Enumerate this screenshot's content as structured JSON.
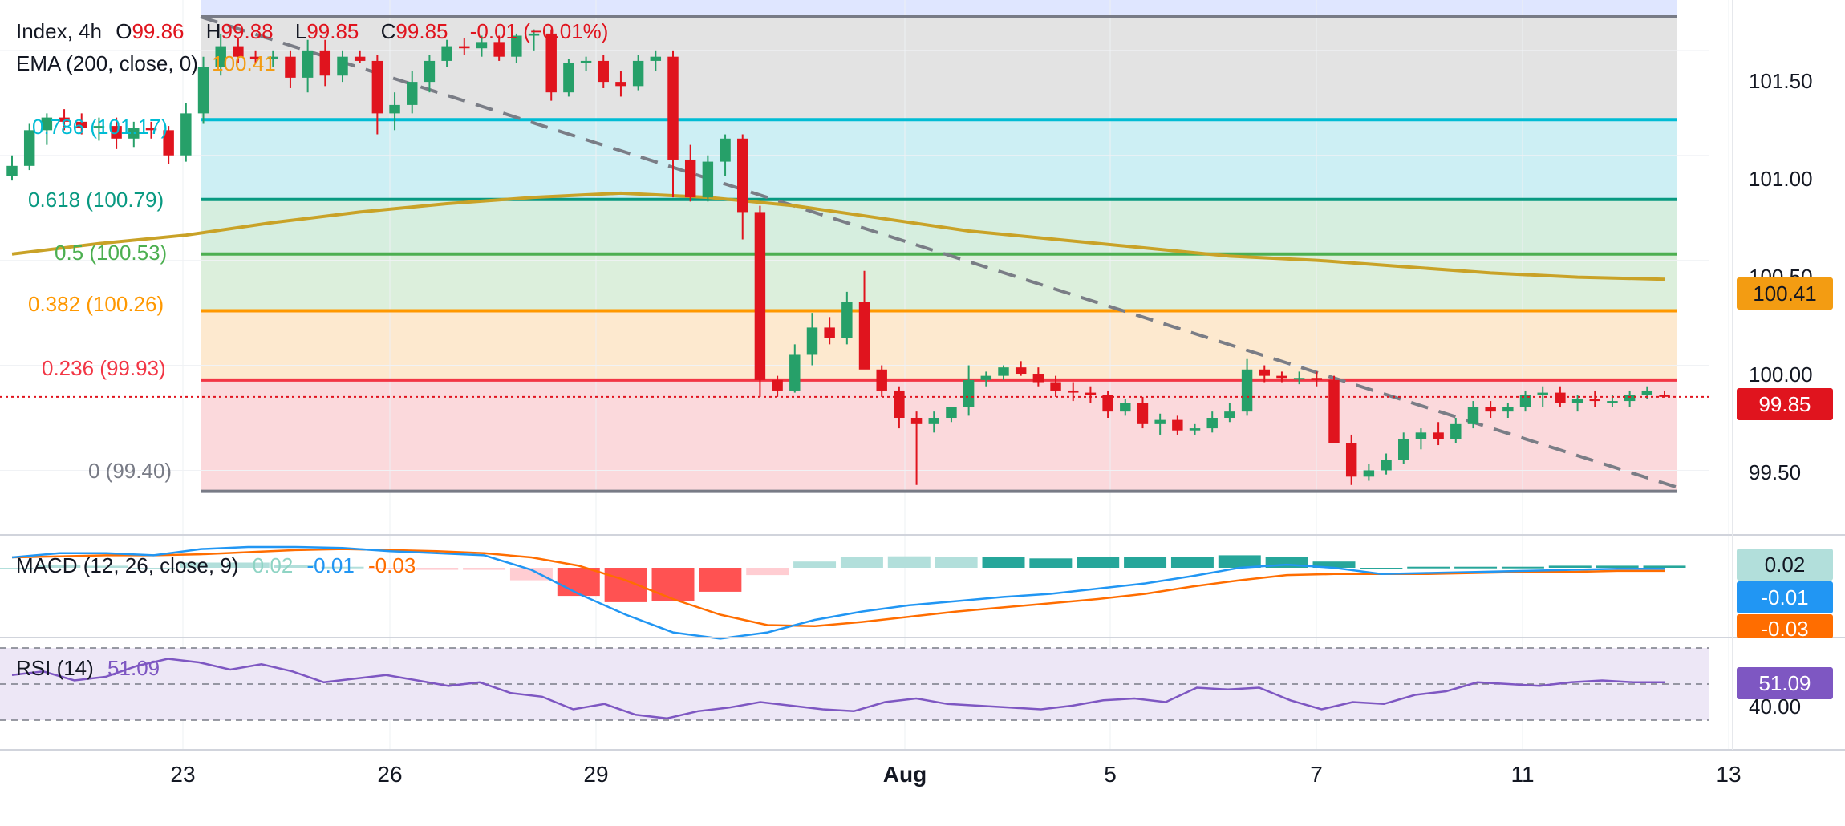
{
  "legend": {
    "symbol": "Index, 4h",
    "open_label": "O",
    "open": "99.86",
    "high_label": "H",
    "high": "99.88",
    "low_label": "L",
    "low": "99.85",
    "close_label": "C",
    "close": "99.85",
    "change": "-0.01 (−0.01%)",
    "ema_title": "EMA (200, close, 0)",
    "ema_value": "100.41",
    "macd_title": "MACD (12, 26, close, 9)",
    "macd_hist": "0.02",
    "macd_line": "-0.01",
    "macd_signal": "-0.03",
    "rsi_title": "RSI (14)",
    "rsi_value": "51.09"
  },
  "fib": [
    {
      "label": "0.786 (101.17)",
      "price": 101.17,
      "color": "#00bcd4"
    },
    {
      "label": "0.618 (100.79)",
      "price": 100.79,
      "color": "#089981"
    },
    {
      "label": "0.5 (100.53)",
      "price": 100.53,
      "color": "#4caf50"
    },
    {
      "label": "0.382 (100.26)",
      "price": 100.26,
      "color": "#ff9800"
    },
    {
      "label": "0.236 (99.93)",
      "price": 99.93,
      "color": "#f23645"
    },
    {
      "label": "0 (99.40)",
      "price": 99.4,
      "color": "#787b86"
    }
  ],
  "price_axis": [
    "101.50",
    "101.00",
    "100.50",
    "100.00",
    "99.50"
  ],
  "price_axis_values": [
    101.5,
    101.0,
    100.5,
    100.0,
    99.5
  ],
  "badges": {
    "ema": "100.41",
    "last": "99.85",
    "macd_hist": "0.02",
    "macd_line": "-0.01",
    "macd_signal": "-0.03",
    "rsi": "51.09"
  },
  "rsi_axis": "40.00",
  "date_axis": [
    "23",
    "26",
    "29",
    "Aug",
    "5",
    "7",
    "11",
    "13"
  ],
  "chart_data": {
    "type": "candlestick",
    "interval": "4h",
    "ohlc": [
      [
        100.9,
        101.0,
        100.88,
        100.95
      ],
      [
        100.95,
        101.15,
        100.93,
        101.12
      ],
      [
        101.12,
        101.2,
        101.05,
        101.18
      ],
      [
        101.18,
        101.22,
        101.12,
        101.16
      ],
      [
        101.16,
        101.2,
        101.1,
        101.13
      ],
      [
        101.13,
        101.18,
        101.07,
        101.14
      ],
      [
        101.14,
        101.18,
        101.03,
        101.08
      ],
      [
        101.08,
        101.16,
        101.04,
        101.13
      ],
      [
        101.13,
        101.16,
        101.08,
        101.12
      ],
      [
        101.12,
        101.14,
        100.96,
        101.0
      ],
      [
        101.0,
        101.25,
        100.97,
        101.2
      ],
      [
        101.2,
        101.47,
        101.15,
        101.42
      ],
      [
        101.42,
        101.58,
        101.38,
        101.52
      ],
      [
        101.52,
        101.56,
        101.44,
        101.47
      ],
      [
        101.47,
        101.5,
        101.44,
        101.46
      ],
      [
        101.46,
        101.5,
        101.42,
        101.47
      ],
      [
        101.47,
        101.5,
        101.32,
        101.37
      ],
      [
        101.37,
        101.55,
        101.3,
        101.5
      ],
      [
        101.5,
        101.55,
        101.33,
        101.38
      ],
      [
        101.38,
        101.5,
        101.35,
        101.47
      ],
      [
        101.47,
        101.5,
        101.44,
        101.45
      ],
      [
        101.45,
        101.48,
        101.1,
        101.2
      ],
      [
        101.2,
        101.3,
        101.12,
        101.24
      ],
      [
        101.24,
        101.4,
        101.2,
        101.35
      ],
      [
        101.35,
        101.48,
        101.3,
        101.45
      ],
      [
        101.45,
        101.55,
        101.42,
        101.52
      ],
      [
        101.52,
        101.56,
        101.48,
        101.51
      ],
      [
        101.51,
        101.57,
        101.47,
        101.54
      ],
      [
        101.54,
        101.57,
        101.45,
        101.47
      ],
      [
        101.47,
        101.58,
        101.44,
        101.57
      ],
      [
        101.57,
        101.6,
        101.5,
        101.58
      ],
      [
        101.58,
        101.6,
        101.26,
        101.3
      ],
      [
        101.3,
        101.46,
        101.28,
        101.44
      ],
      [
        101.44,
        101.47,
        101.4,
        101.45
      ],
      [
        101.45,
        101.48,
        101.32,
        101.35
      ],
      [
        101.35,
        101.4,
        101.28,
        101.33
      ],
      [
        101.33,
        101.48,
        101.31,
        101.45
      ],
      [
        101.45,
        101.5,
        101.4,
        101.47
      ],
      [
        101.47,
        101.5,
        100.8,
        100.98
      ],
      [
        100.98,
        101.05,
        100.78,
        100.8
      ],
      [
        100.8,
        101.0,
        100.78,
        100.97
      ],
      [
        100.97,
        101.1,
        100.9,
        101.08
      ],
      [
        101.08,
        101.1,
        100.6,
        100.73
      ],
      [
        100.73,
        100.76,
        99.85,
        99.93
      ],
      [
        99.93,
        99.95,
        99.85,
        99.88
      ],
      [
        99.88,
        100.1,
        99.87,
        100.05
      ],
      [
        100.05,
        100.25,
        100.0,
        100.18
      ],
      [
        100.18,
        100.23,
        100.1,
        100.13
      ],
      [
        100.13,
        100.35,
        100.1,
        100.3
      ],
      [
        100.3,
        100.45,
        100.0,
        99.98
      ],
      [
        99.98,
        100.0,
        99.85,
        99.88
      ],
      [
        99.88,
        99.9,
        99.7,
        99.75
      ],
      [
        99.75,
        99.78,
        99.43,
        99.72
      ],
      [
        99.72,
        99.78,
        99.68,
        99.75
      ],
      [
        99.75,
        99.8,
        99.73,
        99.8
      ],
      [
        99.8,
        100.0,
        99.76,
        99.93
      ],
      [
        99.93,
        99.97,
        99.9,
        99.95
      ],
      [
        99.95,
        100.0,
        99.93,
        99.99
      ],
      [
        99.99,
        100.02,
        99.95,
        99.96
      ],
      [
        99.96,
        99.99,
        99.9,
        99.92
      ],
      [
        99.92,
        99.95,
        99.85,
        99.88
      ],
      [
        99.88,
        99.92,
        99.83,
        99.87
      ],
      [
        99.87,
        99.9,
        99.82,
        99.86
      ],
      [
        99.86,
        99.88,
        99.75,
        99.78
      ],
      [
        99.78,
        99.84,
        99.76,
        99.82
      ],
      [
        99.82,
        99.85,
        99.7,
        99.72
      ],
      [
        99.72,
        99.77,
        99.67,
        99.74
      ],
      [
        99.74,
        99.76,
        99.67,
        99.69
      ],
      [
        99.69,
        99.72,
        99.67,
        99.7
      ],
      [
        99.7,
        99.78,
        99.68,
        99.75
      ],
      [
        99.75,
        99.82,
        99.73,
        99.78
      ],
      [
        99.78,
        100.03,
        99.76,
        99.98
      ],
      [
        99.98,
        100.0,
        99.92,
        99.95
      ],
      [
        99.95,
        99.97,
        99.92,
        99.94
      ],
      [
        99.94,
        99.97,
        99.91,
        99.94
      ],
      [
        99.94,
        99.97,
        99.9,
        99.93
      ],
      [
        99.93,
        99.95,
        99.63,
        99.63
      ],
      [
        99.63,
        99.67,
        99.43,
        99.47
      ],
      [
        99.47,
        99.53,
        99.45,
        99.5
      ],
      [
        99.5,
        99.58,
        99.48,
        99.55
      ],
      [
        99.55,
        99.68,
        99.53,
        99.65
      ],
      [
        99.65,
        99.7,
        99.6,
        99.68
      ],
      [
        99.68,
        99.73,
        99.62,
        99.65
      ],
      [
        99.65,
        99.75,
        99.63,
        99.72
      ],
      [
        99.72,
        99.83,
        99.7,
        99.8
      ],
      [
        99.8,
        99.83,
        99.75,
        99.78
      ],
      [
        99.78,
        99.82,
        99.75,
        99.8
      ],
      [
        99.8,
        99.88,
        99.78,
        99.86
      ],
      [
        99.86,
        99.9,
        99.8,
        99.87
      ],
      [
        99.87,
        99.9,
        99.8,
        99.82
      ],
      [
        99.82,
        99.86,
        99.78,
        99.84
      ],
      [
        99.84,
        99.88,
        99.8,
        99.83
      ],
      [
        99.83,
        99.86,
        99.8,
        99.83
      ],
      [
        99.83,
        99.88,
        99.8,
        99.86
      ],
      [
        99.86,
        99.9,
        99.84,
        99.88
      ],
      [
        99.86,
        99.88,
        99.85,
        99.85
      ]
    ],
    "ema200": [
      100.53,
      100.58,
      100.62,
      100.68,
      100.73,
      100.77,
      100.8,
      100.82,
      100.8,
      100.76,
      100.7,
      100.64,
      100.6,
      100.56,
      100.52,
      100.5,
      100.47,
      100.44,
      100.42,
      100.41
    ],
    "macd": {
      "line": [
        0.1,
        0.14,
        0.14,
        0.12,
        0.18,
        0.2,
        0.2,
        0.19,
        0.16,
        0.14,
        0.12,
        -0.02,
        -0.25,
        -0.45,
        -0.62,
        -0.68,
        -0.62,
        -0.5,
        -0.42,
        -0.36,
        -0.32,
        -0.28,
        -0.25,
        -0.2,
        -0.15,
        -0.08,
        0.0,
        0.03,
        0.0,
        -0.06,
        -0.05,
        -0.04,
        -0.03,
        -0.02,
        -0.01,
        -0.01
      ],
      "signal": [
        0.1,
        0.11,
        0.12,
        0.12,
        0.13,
        0.15,
        0.17,
        0.18,
        0.17,
        0.16,
        0.14,
        0.1,
        0.02,
        -0.12,
        -0.3,
        -0.45,
        -0.55,
        -0.56,
        -0.52,
        -0.47,
        -0.42,
        -0.38,
        -0.34,
        -0.3,
        -0.25,
        -0.18,
        -0.12,
        -0.07,
        -0.06,
        -0.06,
        -0.06,
        -0.05,
        -0.04,
        -0.04,
        -0.03,
        -0.03
      ],
      "hist": [
        0.0,
        0.03,
        0.02,
        0.0,
        0.05,
        0.05,
        0.03,
        0.01,
        -0.01,
        -0.02,
        -0.02,
        -0.12,
        -0.27,
        -0.33,
        -0.32,
        -0.23,
        -0.07,
        0.06,
        0.1,
        0.11,
        0.1,
        0.1,
        0.09,
        0.1,
        0.1,
        0.1,
        0.12,
        0.1,
        0.06,
        0.0,
        0.01,
        0.01,
        0.01,
        0.02,
        0.02,
        0.02
      ]
    },
    "rsi": [
      55,
      57,
      52,
      54,
      60,
      64,
      62,
      58,
      61,
      57,
      51,
      53,
      55,
      52,
      49,
      51,
      45,
      43,
      36,
      39,
      33,
      31,
      35,
      37,
      40,
      38,
      36,
      35,
      40,
      42,
      39,
      38,
      37,
      36,
      38,
      41,
      42,
      40,
      48,
      47,
      48,
      41,
      36,
      40,
      39,
      44,
      46,
      51,
      50,
      49,
      51,
      52,
      51,
      51
    ],
    "rsi_levels": [
      70,
      50,
      30
    ],
    "title": "",
    "ylim": [
      99.2,
      101.74
    ]
  }
}
